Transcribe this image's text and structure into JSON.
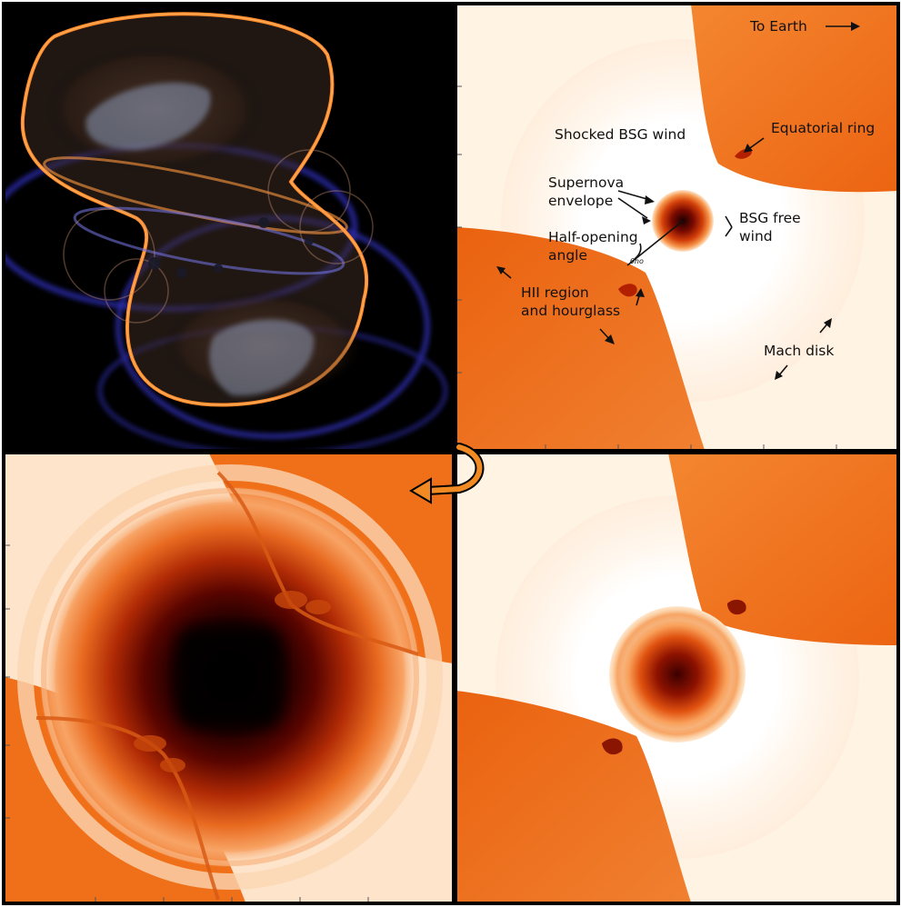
{
  "labels": {
    "to_earth": "To Earth",
    "equatorial_ring": "Equatorial ring",
    "shocked_bsg_wind": "Shocked BSG wind",
    "supernova_line1": "Supernova",
    "supernova_line2": "envelope",
    "bsg_free_line1": "BSG free",
    "bsg_free_line2": "wind",
    "half_opening_line1": "Half-opening",
    "half_opening_line2": "angle",
    "theta_symbol": "θho",
    "hii_line1": "HII region",
    "hii_line2": "and hourglass",
    "mach_disk": "Mach disk"
  },
  "colors": {
    "free_wind": "#ffffff",
    "shocked_wind": "#fff3e4",
    "hii_region": "#f47a1f",
    "hii_dark": "#ea5e0a",
    "envelope_core": "#2a0000",
    "volume_glow": "#ff8c2a",
    "volume_blue": "#3b3bd8",
    "background_dark": "#000000",
    "frame": "#000000",
    "rotate_arrow": "#f18a22"
  },
  "icons": [
    "rotate-arrow-icon"
  ]
}
